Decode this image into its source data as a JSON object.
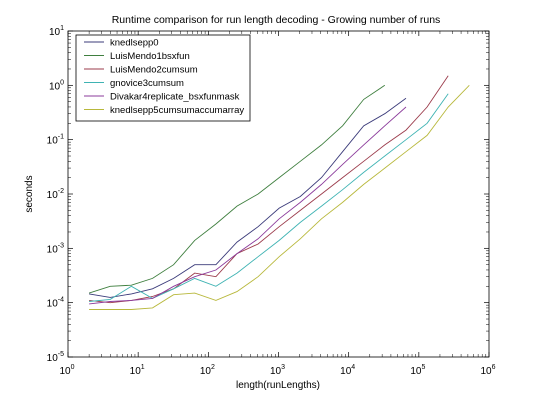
{
  "chart_data": {
    "type": "line",
    "title": "Runtime comparison for run length decoding - Growing number of runs",
    "xlabel": "length(runLengths)",
    "ylabel": "seconds",
    "xscale": "log",
    "yscale": "log",
    "xlim": [
      1,
      1000000
    ],
    "ylim": [
      1e-05,
      10
    ],
    "grid": false,
    "legend_position": "top-left",
    "x_ticks": [
      {
        "base": "10",
        "exp": "0"
      },
      {
        "base": "10",
        "exp": "1"
      },
      {
        "base": "10",
        "exp": "2"
      },
      {
        "base": "10",
        "exp": "3"
      },
      {
        "base": "10",
        "exp": "4"
      },
      {
        "base": "10",
        "exp": "5"
      },
      {
        "base": "10",
        "exp": "6"
      }
    ],
    "y_ticks": [
      {
        "base": "10",
        "exp": "-5"
      },
      {
        "base": "10",
        "exp": "-4"
      },
      {
        "base": "10",
        "exp": "-3"
      },
      {
        "base": "10",
        "exp": "-2"
      },
      {
        "base": "10",
        "exp": "-1"
      },
      {
        "base": "10",
        "exp": "0"
      },
      {
        "base": "10",
        "exp": "1"
      }
    ],
    "series": [
      {
        "name": "knedlsepp0",
        "color": "#3b3b7a",
        "x": [
          2,
          4,
          8,
          16,
          32,
          64,
          128,
          256,
          512,
          1024,
          2048,
          4096,
          8192,
          16384,
          32768,
          65536
        ],
        "y": [
          0.000145,
          0.000125,
          0.000145,
          0.00018,
          0.00028,
          0.0005,
          0.0005,
          0.0013,
          0.0025,
          0.0055,
          0.009,
          0.02,
          0.06,
          0.18,
          0.3,
          0.58
        ]
      },
      {
        "name": "LuisMendo1bsxfun",
        "color": "#3f7f3f",
        "x": [
          2,
          4,
          8,
          16,
          32,
          64,
          128,
          256,
          512,
          1024,
          2048,
          4096,
          8192,
          16384,
          32768
        ],
        "y": [
          0.00015,
          0.0002,
          0.00021,
          0.00028,
          0.0005,
          0.0014,
          0.0028,
          0.006,
          0.01,
          0.02,
          0.04,
          0.08,
          0.18,
          0.55,
          1.0
        ]
      },
      {
        "name": "LuisMendo2cumsum",
        "color": "#9b3b4b",
        "x": [
          2,
          4,
          8,
          16,
          32,
          64,
          128,
          256,
          512,
          1024,
          2048,
          4096,
          8192,
          16384,
          32768,
          65536,
          131072,
          262144
        ],
        "y": [
          0.00011,
          0.0001,
          0.00011,
          0.00013,
          0.00018,
          0.00035,
          0.0003,
          0.0008,
          0.0012,
          0.0025,
          0.005,
          0.01,
          0.02,
          0.04,
          0.08,
          0.15,
          0.4,
          1.5
        ]
      },
      {
        "name": "gnovice3cumsum",
        "color": "#3fb3b3",
        "x": [
          2,
          4,
          8,
          16,
          32,
          64,
          128,
          256,
          512,
          1024,
          2048,
          4096,
          8192,
          16384,
          32768,
          65536,
          131072,
          262144
        ],
        "y": [
          0.000105,
          0.000115,
          0.0002,
          0.00012,
          0.00018,
          0.00028,
          0.0002,
          0.00035,
          0.0007,
          0.0014,
          0.003,
          0.006,
          0.012,
          0.025,
          0.05,
          0.1,
          0.2,
          0.7
        ]
      },
      {
        "name": "Divakar4replicate_bsxfunmask",
        "color": "#8b3b9b",
        "x": [
          2,
          4,
          8,
          16,
          32,
          64,
          128,
          256,
          512,
          1024,
          2048,
          4096,
          8192,
          16384,
          32768,
          65536
        ],
        "y": [
          9.5e-05,
          0.000105,
          0.00011,
          0.00012,
          0.0002,
          0.0003,
          0.0004,
          0.0008,
          0.0015,
          0.0035,
          0.007,
          0.015,
          0.035,
          0.08,
          0.18,
          0.4
        ]
      },
      {
        "name": "knedlsepp5cumsumaccumarray",
        "color": "#b8b83b",
        "x": [
          2,
          4,
          8,
          16,
          32,
          64,
          128,
          256,
          512,
          1024,
          2048,
          4096,
          8192,
          16384,
          32768,
          65536,
          131072,
          262144,
          524288
        ],
        "y": [
          7.5e-05,
          7.5e-05,
          7.5e-05,
          8e-05,
          0.00014,
          0.00015,
          0.00011,
          0.00016,
          0.0003,
          0.0007,
          0.0015,
          0.0035,
          0.007,
          0.015,
          0.03,
          0.06,
          0.12,
          0.4,
          1.0
        ]
      }
    ]
  }
}
